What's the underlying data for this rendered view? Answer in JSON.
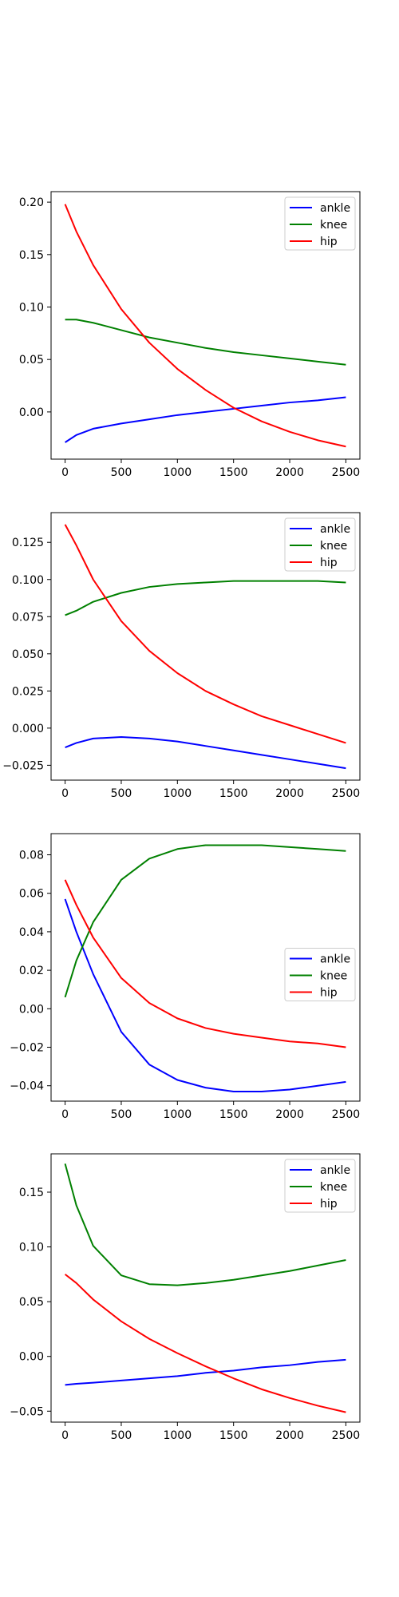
{
  "chart_data": [
    {
      "type": "line",
      "xlim": [
        -125,
        2625
      ],
      "ylim": [
        -0.045,
        0.21
      ],
      "xticks": [
        0,
        500,
        1000,
        1500,
        2000,
        2500
      ],
      "xtick_labels": [
        "0",
        "500",
        "1000",
        "1500",
        "2000",
        "2500"
      ],
      "yticks": [
        0.0,
        0.05,
        0.1,
        0.15,
        0.2
      ],
      "ytick_labels": [
        "0.00",
        "0.05",
        "0.10",
        "0.15",
        "0.20"
      ],
      "grid": false,
      "legend_position": "top-right",
      "x": [
        0,
        100,
        250,
        500,
        750,
        1000,
        1250,
        1500,
        1750,
        2000,
        2250,
        2500
      ],
      "series": [
        {
          "name": "ankle",
          "color": "#0000ff",
          "values": [
            -0.029,
            -0.022,
            -0.016,
            -0.011,
            -0.007,
            -0.003,
            0.0,
            0.003,
            0.006,
            0.009,
            0.011,
            0.014
          ]
        },
        {
          "name": "knee",
          "color": "#008000",
          "values": [
            0.088,
            0.088,
            0.085,
            0.078,
            0.071,
            0.066,
            0.061,
            0.057,
            0.054,
            0.051,
            0.048,
            0.045
          ]
        },
        {
          "name": "hip",
          "color": "#ff0000",
          "values": [
            0.198,
            0.172,
            0.14,
            0.098,
            0.066,
            0.041,
            0.021,
            0.004,
            -0.009,
            -0.019,
            -0.027,
            -0.033
          ]
        }
      ]
    },
    {
      "type": "line",
      "xlim": [
        -125,
        2625
      ],
      "ylim": [
        -0.035,
        0.145
      ],
      "xticks": [
        0,
        500,
        1000,
        1500,
        2000,
        2500
      ],
      "xtick_labels": [
        "0",
        "500",
        "1000",
        "1500",
        "2000",
        "2500"
      ],
      "yticks": [
        -0.025,
        0.0,
        0.025,
        0.05,
        0.075,
        0.1,
        0.125
      ],
      "ytick_labels": [
        "−0.025",
        "0.000",
        "0.025",
        "0.050",
        "0.075",
        "0.100",
        "0.125"
      ],
      "grid": false,
      "legend_position": "top-right",
      "x": [
        0,
        100,
        250,
        500,
        750,
        1000,
        1250,
        1500,
        1750,
        2000,
        2250,
        2500
      ],
      "series": [
        {
          "name": "ankle",
          "color": "#0000ff",
          "values": [
            -0.013,
            -0.01,
            -0.007,
            -0.006,
            -0.007,
            -0.009,
            -0.012,
            -0.015,
            -0.018,
            -0.021,
            -0.024,
            -0.027
          ]
        },
        {
          "name": "knee",
          "color": "#008000",
          "values": [
            0.076,
            0.079,
            0.085,
            0.091,
            0.095,
            0.097,
            0.098,
            0.099,
            0.099,
            0.099,
            0.099,
            0.098
          ]
        },
        {
          "name": "hip",
          "color": "#ff0000",
          "values": [
            0.137,
            0.123,
            0.1,
            0.072,
            0.052,
            0.037,
            0.025,
            0.016,
            0.008,
            0.002,
            -0.004,
            -0.01
          ]
        }
      ]
    },
    {
      "type": "line",
      "xlim": [
        -125,
        2625
      ],
      "ylim": [
        -0.048,
        0.091
      ],
      "xticks": [
        0,
        500,
        1000,
        1500,
        2000,
        2500
      ],
      "xtick_labels": [
        "0",
        "500",
        "1000",
        "1500",
        "2000",
        "2500"
      ],
      "yticks": [
        -0.04,
        -0.02,
        0.0,
        0.02,
        0.04,
        0.06,
        0.08
      ],
      "ytick_labels": [
        "−0.04",
        "−0.02",
        "0.00",
        "0.02",
        "0.04",
        "0.06",
        "0.08"
      ],
      "grid": false,
      "legend_position": "center-right",
      "x": [
        0,
        100,
        250,
        500,
        750,
        1000,
        1250,
        1500,
        1750,
        2000,
        2250,
        2500
      ],
      "series": [
        {
          "name": "ankle",
          "color": "#0000ff",
          "values": [
            0.057,
            0.04,
            0.018,
            -0.012,
            -0.029,
            -0.037,
            -0.041,
            -0.043,
            -0.043,
            -0.042,
            -0.04,
            -0.038
          ]
        },
        {
          "name": "knee",
          "color": "#008000",
          "values": [
            0.006,
            0.025,
            0.045,
            0.067,
            0.078,
            0.083,
            0.085,
            0.085,
            0.085,
            0.084,
            0.083,
            0.082
          ]
        },
        {
          "name": "hip",
          "color": "#ff0000",
          "values": [
            0.067,
            0.054,
            0.037,
            0.016,
            0.003,
            -0.005,
            -0.01,
            -0.013,
            -0.015,
            -0.017,
            -0.018,
            -0.02
          ]
        }
      ]
    },
    {
      "type": "line",
      "xlim": [
        -125,
        2625
      ],
      "ylim": [
        -0.06,
        0.185
      ],
      "xticks": [
        0,
        500,
        1000,
        1500,
        2000,
        2500
      ],
      "xtick_labels": [
        "0",
        "500",
        "1000",
        "1500",
        "2000",
        "2500"
      ],
      "yticks": [
        -0.05,
        0.0,
        0.05,
        0.1,
        0.15
      ],
      "ytick_labels": [
        "−0.05",
        "0.00",
        "0.05",
        "0.10",
        "0.15"
      ],
      "grid": false,
      "legend_position": "top-right",
      "x": [
        0,
        100,
        250,
        500,
        750,
        1000,
        1250,
        1500,
        1750,
        2000,
        2250,
        2500
      ],
      "series": [
        {
          "name": "ankle",
          "color": "#0000ff",
          "values": [
            -0.026,
            -0.025,
            -0.024,
            -0.022,
            -0.02,
            -0.018,
            -0.015,
            -0.013,
            -0.01,
            -0.008,
            -0.005,
            -0.003
          ]
        },
        {
          "name": "knee",
          "color": "#008000",
          "values": [
            0.176,
            0.138,
            0.101,
            0.074,
            0.066,
            0.065,
            0.067,
            0.07,
            0.074,
            0.078,
            0.083,
            0.088
          ]
        },
        {
          "name": "hip",
          "color": "#ff0000",
          "values": [
            0.075,
            0.067,
            0.052,
            0.032,
            0.016,
            0.003,
            -0.009,
            -0.02,
            -0.03,
            -0.038,
            -0.045,
            -0.051
          ]
        }
      ]
    }
  ]
}
